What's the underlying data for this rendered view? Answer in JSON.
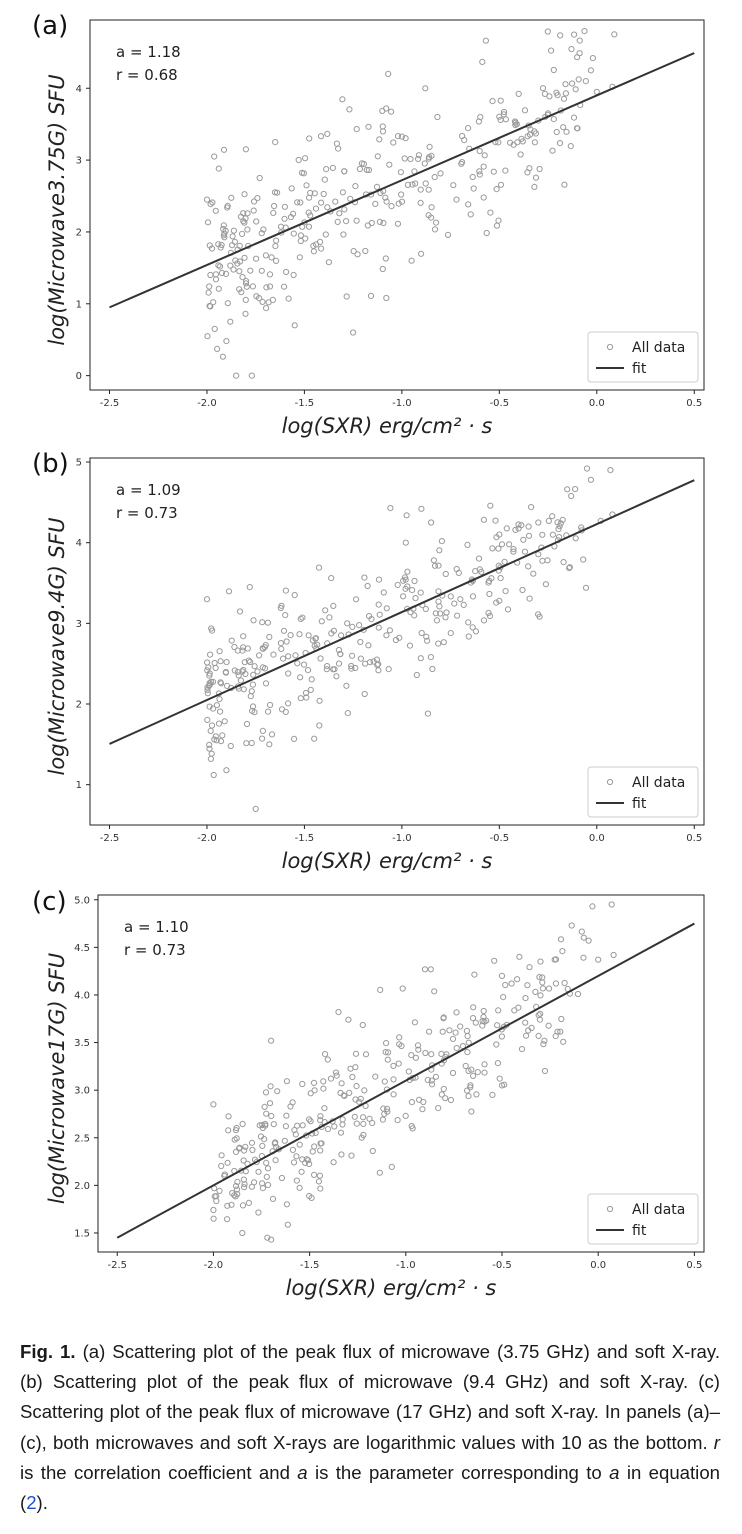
{
  "chart_data": [
    {
      "type": "scatter",
      "panel_label": "(a)",
      "stat_a": "a = 1.18",
      "stat_r": "r = 0.68",
      "xlabel": "log(SXR)   erg/cm² · s",
      "ylabel": "log(Microwave3.75G)   SFU",
      "xlim": [
        -2.6,
        0.55
      ],
      "ylim": [
        -0.2,
        4.95
      ],
      "xticks": [
        -2.5,
        -2.0,
        -1.5,
        -1.0,
        -0.5,
        0.0,
        0.5
      ],
      "xtick_labels": [
        "-2.5",
        "-2.0",
        "-1.5",
        "-1.0",
        "-0.5",
        "0.0",
        "0.5"
      ],
      "yticks": [
        0,
        1,
        2,
        3,
        4
      ],
      "ytick_labels": [
        "0",
        "1",
        "2",
        "3",
        "4"
      ],
      "legend": {
        "placement": "lower-right",
        "entries": [
          "All data",
          "fit"
        ]
      },
      "fit": {
        "slope": 1.18,
        "intercept": 3.9,
        "x_range": [
          -2.5,
          0.5
        ]
      },
      "noise": 0.55,
      "series": [
        {
          "values": [
            [
              -1.85,
              0.0
            ],
            [
              -1.77,
              0.0
            ],
            [
              -1.9,
              0.48
            ],
            [
              -1.88,
              0.75
            ],
            [
              -1.96,
              0.65
            ],
            [
              -1.55,
              0.7
            ],
            [
              -1.25,
              0.6
            ],
            [
              -1.08,
              1.08
            ],
            [
              -0.95,
              1.6
            ],
            [
              -0.85,
              2.2
            ],
            [
              -0.72,
              2.45
            ],
            [
              -0.58,
              2.48
            ],
            [
              -0.6,
              2.8
            ],
            [
              -0.52,
              3.25
            ],
            [
              -0.35,
              3.48
            ],
            [
              -0.3,
              3.55
            ],
            [
              -0.32,
              3.4
            ],
            [
              -0.25,
              3.65
            ],
            [
              -0.03,
              4.25
            ],
            [
              -0.02,
              4.42
            ],
            [
              0.09,
              4.75
            ],
            [
              0.08,
              4.02
            ],
            [
              0.0,
              3.95
            ],
            [
              -1.07,
              4.2
            ],
            [
              -0.88,
              4.0
            ],
            [
              -1.65,
              3.25
            ],
            [
              -1.8,
              3.15
            ],
            [
              -2.0,
              2.45
            ]
          ]
        }
      ]
    },
    {
      "type": "scatter",
      "panel_label": "(b)",
      "stat_a": "a = 1.09",
      "stat_r": "r = 0.73",
      "xlabel": "log(SXR)   erg/cm² · s",
      "ylabel": "log(Microwave9.4G)   SFU",
      "xlim": [
        -2.6,
        0.55
      ],
      "ylim": [
        0.5,
        5.05
      ],
      "xticks": [
        -2.5,
        -2.0,
        -1.5,
        -1.0,
        -0.5,
        0.0,
        0.5
      ],
      "xtick_labels": [
        "-2.5",
        "-2.0",
        "-1.5",
        "-1.0",
        "-0.5",
        "0.0",
        "0.5"
      ],
      "yticks": [
        1,
        2,
        3,
        4,
        5
      ],
      "ytick_labels": [
        "1",
        "2",
        "3",
        "4",
        "5"
      ],
      "legend": {
        "placement": "lower-right",
        "entries": [
          "All data",
          "fit"
        ]
      },
      "fit": {
        "slope": 1.09,
        "intercept": 4.23,
        "x_range": [
          -2.5,
          0.5
        ]
      },
      "noise": 0.42,
      "series": [
        {
          "values": [
            [
              -1.75,
              0.7
            ],
            [
              -1.9,
              1.18
            ],
            [
              -1.98,
              1.32
            ],
            [
              -1.95,
              1.55
            ],
            [
              -1.68,
              1.5
            ],
            [
              -1.45,
              1.57
            ],
            [
              -0.9,
              4.42
            ],
            [
              -0.98,
              4.0
            ],
            [
              -0.85,
              4.25
            ],
            [
              -0.5,
              4.1
            ],
            [
              -0.45,
              3.98
            ],
            [
              -0.3,
              4.25
            ],
            [
              -0.35,
              4.2
            ],
            [
              -0.05,
              4.92
            ],
            [
              -0.03,
              4.78
            ],
            [
              0.07,
              4.9
            ],
            [
              0.08,
              4.35
            ],
            [
              0.02,
              4.27
            ],
            [
              -0.5,
              3.28
            ],
            [
              -0.62,
              2.9
            ],
            [
              -0.7,
              3.3
            ],
            [
              -1.78,
              3.45
            ],
            [
              -2.0,
              3.3
            ],
            [
              -1.55,
              3.35
            ]
          ]
        }
      ]
    },
    {
      "type": "scatter",
      "panel_label": "(c)",
      "stat_a": "a = 1.10",
      "stat_r": "r = 0.73",
      "xlabel": "log(SXR)   erg/cm² · s",
      "ylabel": "log(Microwave17G)   SFU",
      "xlim": [
        -2.6,
        0.55
      ],
      "ylim": [
        1.3,
        5.05
      ],
      "xticks": [
        -2.5,
        -2.0,
        -1.5,
        -1.0,
        -0.5,
        0.0,
        0.5
      ],
      "xtick_labels": [
        "-2.5",
        "-2.0",
        "-1.5",
        "-1.0",
        "-0.5",
        "0.0",
        "0.5"
      ],
      "yticks": [
        1.5,
        2.0,
        2.5,
        3.0,
        3.5,
        4.0,
        4.5,
        5.0
      ],
      "ytick_labels": [
        "1.5",
        "2.0",
        "2.5",
        "3.0",
        "3.5",
        "4.0",
        "4.5",
        "5.0"
      ],
      "legend": {
        "placement": "lower-right",
        "entries": [
          "All data",
          "fit"
        ]
      },
      "fit": {
        "slope": 1.1,
        "intercept": 4.2,
        "x_range": [
          -2.5,
          0.5
        ]
      },
      "noise": 0.38,
      "series": [
        {
          "values": [
            [
              -1.85,
              1.5
            ],
            [
              -1.7,
              1.43
            ],
            [
              -1.72,
              1.45
            ],
            [
              -0.9,
              4.27
            ],
            [
              -0.87,
              4.27
            ],
            [
              -0.5,
              4.2
            ],
            [
              -0.45,
              4.12
            ],
            [
              -0.3,
              4.35
            ],
            [
              -0.22,
              4.12
            ],
            [
              -0.05,
              4.57
            ],
            [
              -0.03,
              4.93
            ],
            [
              0.07,
              4.95
            ],
            [
              0.08,
              4.42
            ],
            [
              0.0,
              4.37
            ],
            [
              -0.5,
              3.05
            ],
            [
              -0.65,
              3.15
            ],
            [
              -0.55,
              2.95
            ],
            [
              -1.35,
              3.82
            ],
            [
              -1.7,
              3.52
            ],
            [
              -2.0,
              2.85
            ]
          ]
        }
      ]
    }
  ],
  "caption": {
    "fig_label": "Fig. 1.",
    "text_1": " (a) Scattering plot of the peak flux of microwave (3.75 GHz) and soft X-ray. (b) Scattering plot of the peak flux of microwave (9.4 GHz) and soft X-ray. (c) Scattering plot of the peak flux of microwave (17 GHz) and soft X-ray. In panels (a)–(c), both microwaves and soft X-rays are logarithmic values with 10 as the bottom. ",
    "r_symbol": "r",
    "text_2": " is the correlation coefficient and ",
    "a_symbol": "a",
    "text_3": " is the parameter corresponding to ",
    "a_symbol_2": "a",
    "text_4": " in equation (",
    "eq_ref": "2",
    "text_5": ")."
  },
  "colors": {
    "marker": "#9a9a9a",
    "fit_line": "#333333",
    "axes": "#222222"
  }
}
